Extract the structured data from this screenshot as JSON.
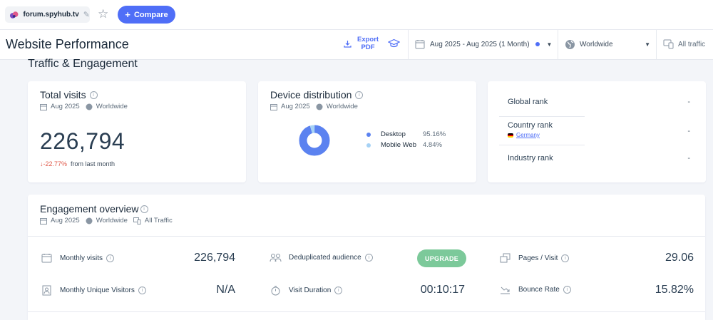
{
  "topbar": {
    "domain": "forum.spyhub.tv",
    "compare_label": "Compare",
    "compare_plus": "+"
  },
  "header": {
    "title": "Website Performance",
    "export_line1": "Export",
    "export_line2": "PDF",
    "date_range": "Aug 2025 - Aug 2025 (1 Month)",
    "geo": "Worldwide",
    "traffic": "All traffic"
  },
  "section_title": "Traffic & Engagement",
  "total_visits": {
    "title": "Total visits",
    "date": "Aug 2025",
    "geo": "Worldwide",
    "value": "226,794",
    "change": "↓-22.77%",
    "change_suffix": "from last month"
  },
  "device_distribution": {
    "title": "Device distribution",
    "date": "Aug 2025",
    "geo": "Worldwide",
    "items": [
      {
        "name": "Desktop",
        "value": "95.16%",
        "share": 95.16,
        "color": "#5b82f0"
      },
      {
        "name": "Mobile Web",
        "value": "4.84%",
        "share": 4.84,
        "color": "#a6d2f5"
      }
    ]
  },
  "ranks": {
    "global_label": "Global rank",
    "global_value": "-",
    "country_label": "Country rank",
    "country_name": "Germany",
    "country_value": "-",
    "industry_label": "Industry rank",
    "industry_value": "-"
  },
  "engagement": {
    "title": "Engagement overview",
    "date": "Aug 2025",
    "geo": "Worldwide",
    "traffic": "All Traffic",
    "monthly_visits_label": "Monthly visits",
    "monthly_visits_value": "226,794",
    "dedup_label": "Deduplicated audience",
    "upgrade_label": "UPGRADE",
    "pages_label": "Pages / Visit",
    "pages_value": "29.06",
    "unique_label": "Monthly Unique Visitors",
    "unique_value": "N/A",
    "duration_label": "Visit Duration",
    "duration_value": "00:10:17",
    "bounce_label": "Bounce Rate",
    "bounce_value": "15.82%"
  },
  "info_glyph": "i",
  "colors": {
    "accent": "#4f6ef7",
    "negative": "#e0594a",
    "upgrade": "#7cc99a"
  }
}
